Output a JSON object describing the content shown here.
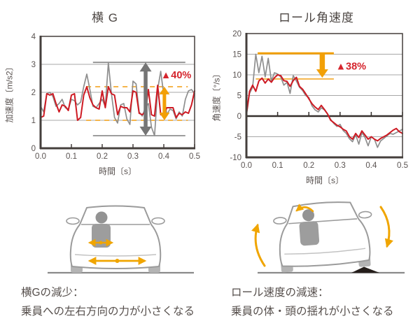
{
  "colors": {
    "red": "#CE1A23",
    "gray_line": "#8E8E8E",
    "ref_gray": "#8F8F8F",
    "arrow_gray": "#757575",
    "orange": "#F2A007",
    "orange_light": "#F5B54A",
    "grid": "#A7A7A7",
    "axis": "#453F3C",
    "zero_axis": "#35302D",
    "text": "#5A5351",
    "label_red": "#D5242C"
  },
  "charts": [
    {
      "title": "横 G",
      "xlabel": "時間〔s〕",
      "ylabel": "加速度〔m/s2〕",
      "x_ticks": [
        "0.0",
        "0.1",
        "0.2",
        "0.3",
        "0.4",
        "0.5"
      ],
      "y_ticks": [
        "0",
        "1",
        "2",
        "3",
        "4"
      ],
      "annotation_label": "▲40%"
    },
    {
      "title": "ロール角速度",
      "xlabel": "時間〔s〕",
      "ylabel": "角速度〔°/s〕",
      "x_ticks": [
        "0.0",
        "0.1",
        "0.2",
        "0.3",
        "0.4",
        "0.5"
      ],
      "y_ticks": [
        "20",
        "15",
        "10",
        "5",
        "0",
        "-5",
        "-10"
      ],
      "annotation_label": "▲38%"
    }
  ],
  "chart_data": [
    {
      "type": "line",
      "title": "横 G",
      "xlabel": "時間〔s〕",
      "ylabel": "加速度〔m/s2〕",
      "xlim": [
        0,
        0.5
      ],
      "ylim": [
        0,
        4
      ],
      "x_start": 0,
      "x_step": 0.01,
      "x_tick_vals": [
        0,
        0.1,
        0.2,
        0.3,
        0.4,
        0.5
      ],
      "y_tick_vals": [
        0,
        1,
        2,
        3,
        4
      ],
      "grid_y": [
        1,
        2,
        3
      ],
      "zero_axis": false,
      "legend": "none",
      "series": [
        {
          "name": "gray",
          "color": "gray_line",
          "width": 1.7,
          "values": [
            1.5,
            1.3,
            1.95,
            2.0,
            1.85,
            1.5,
            1.6,
            1.75,
            1.45,
            1.4,
            1.75,
            1.7,
            1.55,
            1.65,
            2.2,
            2.65,
            2.1,
            1.5,
            1.45,
            1.6,
            1.75,
            1.5,
            3.05,
            1.95,
            1.1,
            0.9,
            1.55,
            1.6,
            1.05,
            0.85,
            2.4,
            2.3,
            1.3,
            1.15,
            1.45,
            1.6,
            0.75,
            0.45,
            2.1,
            2.75,
            1.9,
            1.2,
            1.4,
            1.35,
            1.05,
            1.3,
            1.15,
            1.75,
            2.05,
            2.1,
            1.95
          ]
        },
        {
          "name": "red",
          "color": "red",
          "width": 2,
          "values": [
            1.1,
            1.15,
            1.95,
            1.9,
            1.95,
            1.6,
            1.3,
            1.55,
            1.5,
            1.35,
            1.9,
            1.95,
            1.0,
            1.1,
            1.9,
            2.2,
            1.8,
            1.55,
            1.45,
            1.4,
            2.05,
            1.45,
            2.2,
            1.95,
            1.9,
            1.2,
            1.5,
            1.45,
            1.45,
            1.3,
            2.05,
            2.0,
            1.25,
            1.2,
            1.3,
            2.1,
            1.2,
            1.15,
            2.25,
            1.2,
            1.2,
            1.45,
            1.45,
            1.45,
            1.1,
            1.25,
            1.2,
            1.3,
            1.25,
            1.55,
            2.05
          ]
        }
      ],
      "annotations": {
        "lines": [
          {
            "y": 3.07,
            "x0": 0.17,
            "x1": 0.47,
            "dash": false,
            "color": "ref_gray",
            "width": 1.8
          },
          {
            "y": 0.45,
            "x0": 0.17,
            "x1": 0.47,
            "dash": false,
            "color": "ref_gray",
            "width": 1.8
          },
          {
            "y": 2.2,
            "x0": 0.148,
            "x1": 0.478,
            "dash": true,
            "color": "orange_light",
            "width": 2
          },
          {
            "y": 1.0,
            "x0": 0.148,
            "x1": 0.478,
            "dash": true,
            "color": "orange_light",
            "width": 2
          }
        ],
        "arrows": [
          {
            "x": 0.341,
            "y0": 0.45,
            "y1": 3.07,
            "kind": "double",
            "color": "arrow_gray",
            "shaft": 5.5,
            "head_w": 17,
            "head_h": 13
          },
          {
            "x": 0.402,
            "y0": 1.0,
            "y1": 2.2,
            "kind": "double",
            "color": "orange",
            "shaft": 5,
            "head_w": 15,
            "head_h": 11
          }
        ],
        "label": {
          "text": "▲40%",
          "x": 0.44,
          "y": 2.62
        }
      }
    },
    {
      "type": "line",
      "title": "ロール角速度",
      "xlabel": "時間〔s〕",
      "ylabel": "角速度〔°/s〕",
      "xlim": [
        0,
        0.5
      ],
      "ylim": [
        -10,
        20
      ],
      "x_start": 0,
      "x_step": 0.01,
      "x_tick_vals": [
        0,
        0.1,
        0.2,
        0.3,
        0.4,
        0.5
      ],
      "y_tick_vals": [
        20,
        15,
        10,
        5,
        0,
        -5,
        -10
      ],
      "grid_y": [
        15,
        10,
        5,
        -5
      ],
      "zero_axis": true,
      "legend": "none",
      "series": [
        {
          "name": "gray",
          "color": "gray_line",
          "width": 1.7,
          "values": [
            0.0,
            5.5,
            7.0,
            15.0,
            10.5,
            14.5,
            9.5,
            14.0,
            8.5,
            10.5,
            10.2,
            9.5,
            7.5,
            8.2,
            5.5,
            9.8,
            8.5,
            7.0,
            6.2,
            5.0,
            4.5,
            2.5,
            1.5,
            1.0,
            2.0,
            1.5,
            0.5,
            -0.8,
            -1.8,
            -2.5,
            -2.0,
            -3.5,
            -4.2,
            -5.5,
            -6.2,
            -4.5,
            -6.8,
            -4.0,
            -5.2,
            -7.2,
            -5.0,
            -5.6,
            -7.6,
            -6.0,
            -5.4,
            -4.8,
            -4.2,
            -4.4,
            -4.0,
            -3.6,
            -3.2
          ]
        },
        {
          "name": "red",
          "color": "red",
          "width": 2,
          "values": [
            0.5,
            6.0,
            7.5,
            6.0,
            8.5,
            9.2,
            8.0,
            9.0,
            8.2,
            9.3,
            10.0,
            9.8,
            8.6,
            8.4,
            7.2,
            8.6,
            9.4,
            7.2,
            6.5,
            5.4,
            4.2,
            3.0,
            2.2,
            1.6,
            2.6,
            1.6,
            0.5,
            -1.0,
            -1.6,
            -2.2,
            -2.6,
            -3.2,
            -3.6,
            -5.0,
            -5.6,
            -4.2,
            -5.2,
            -3.6,
            -4.6,
            -5.6,
            -5.0,
            -5.6,
            -6.0,
            -5.4,
            -5.0,
            -4.6,
            -4.0,
            -3.4,
            -3.0,
            -3.8,
            -4.2
          ]
        }
      ],
      "annotations": {
        "lines": [
          {
            "y": 15.2,
            "x0": 0.036,
            "x1": 0.28,
            "dash": false,
            "color": "orange",
            "width": 3
          },
          {
            "y": 9.0,
            "x0": 0.03,
            "x1": 0.28,
            "dash": false,
            "color": "orange_light",
            "width": 2
          }
        ],
        "arrows": [
          {
            "x": 0.243,
            "y0": 9.3,
            "y1": 15.0,
            "kind": "down",
            "color": "orange",
            "shaft": 7.5,
            "head_w": 17,
            "head_h": 12
          }
        ],
        "label": {
          "text": "▲38%",
          "x": 0.335,
          "y": 12.1
        }
      }
    }
  ],
  "captions": {
    "left_line1": "横Gの減少：",
    "left_line2": "乗員への左右方向の力が小さくなる",
    "right_line1": "ロール速度の減速：",
    "right_line2": "乗員の体・頭の揺れが小さくなる"
  }
}
